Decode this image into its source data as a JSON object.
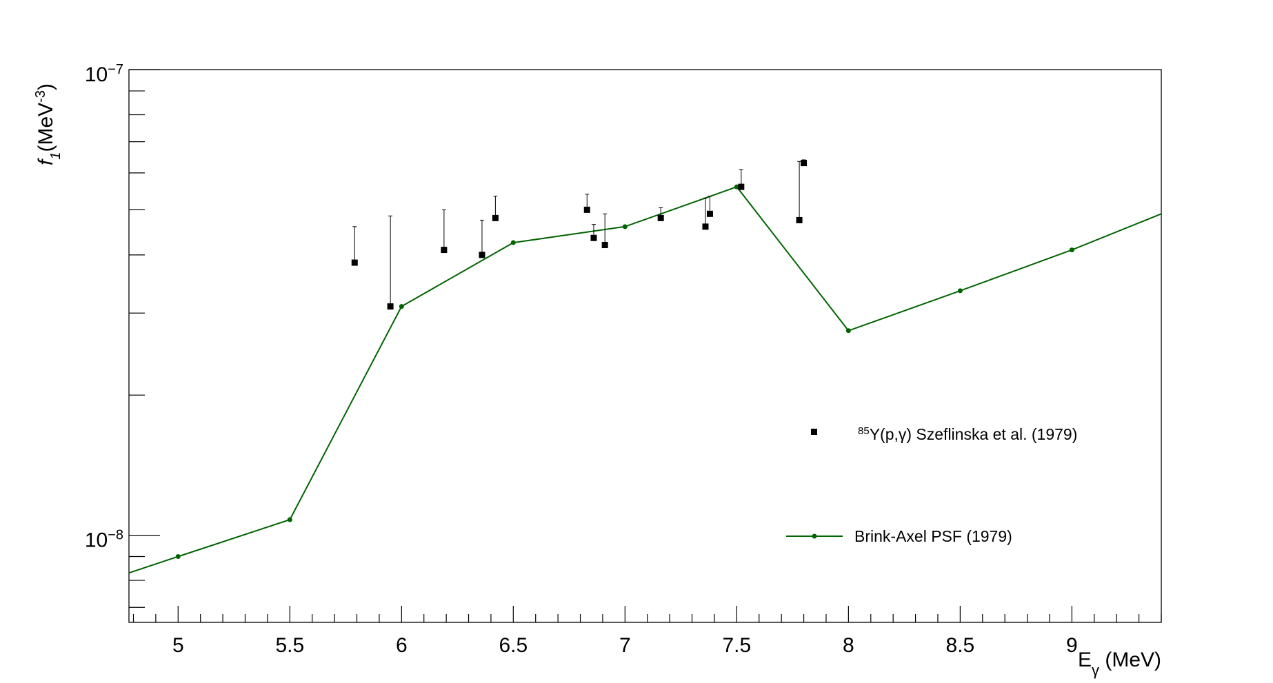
{
  "chart_data": {
    "type": "scatter",
    "xlabel": {
      "main": "E",
      "sub": "γ",
      "tail": " (MeV)"
    },
    "ylabel": {
      "main": "f",
      "sub": "1",
      "tail": "(MeV",
      "sup": "-3",
      "close": ")"
    },
    "xlim": [
      4.78,
      9.4
    ],
    "ylim": [
      6.5e-09,
      1e-07
    ],
    "y_scale": "log",
    "grid": false,
    "legend_position": "right-middle",
    "x_ticks": [
      {
        "value": 5,
        "label": "5"
      },
      {
        "value": 5.5,
        "label": "5.5"
      },
      {
        "value": 6,
        "label": "6"
      },
      {
        "value": 6.5,
        "label": "6.5"
      },
      {
        "value": 7,
        "label": "7"
      },
      {
        "value": 7.5,
        "label": "7.5"
      },
      {
        "value": 8,
        "label": "8"
      },
      {
        "value": 8.5,
        "label": "8.5"
      },
      {
        "value": 9,
        "label": "9"
      }
    ],
    "y_ticks": [
      {
        "value": 1e-07,
        "base": "10",
        "exp": "−7"
      },
      {
        "value": 1e-08,
        "base": "10",
        "exp": "−8"
      }
    ],
    "series": [
      {
        "name": {
          "sup": "85",
          "text": "Y(p,γ) Szeflinska et al. (1979)"
        },
        "kind": "points",
        "color": "#000000",
        "points": [
          {
            "x": 5.79,
            "y": 3.85e-08,
            "yhi": 4.6e-08
          },
          {
            "x": 5.95,
            "y": 3.1e-08,
            "yhi": 4.85e-08
          },
          {
            "x": 6.19,
            "y": 4.1e-08,
            "yhi": 5e-08
          },
          {
            "x": 6.36,
            "y": 4e-08,
            "yhi": 4.75e-08
          },
          {
            "x": 6.42,
            "y": 4.8e-08,
            "yhi": 5.35e-08
          },
          {
            "x": 6.83,
            "y": 5e-08,
            "yhi": 5.4e-08
          },
          {
            "x": 6.86,
            "y": 4.35e-08,
            "yhi": 4.65e-08
          },
          {
            "x": 6.91,
            "y": 4.2e-08,
            "yhi": 4.9e-08
          },
          {
            "x": 7.16,
            "y": 4.8e-08,
            "yhi": 5.05e-08
          },
          {
            "x": 7.36,
            "y": 4.6e-08,
            "yhi": 5.3e-08
          },
          {
            "x": 7.38,
            "y": 4.9e-08,
            "yhi": 5.35e-08
          },
          {
            "x": 7.52,
            "y": 5.6e-08,
            "yhi": 6.1e-08
          },
          {
            "x": 7.78,
            "y": 4.75e-08,
            "yhi": 6.35e-08
          },
          {
            "x": 7.8,
            "y": 6.3e-08,
            "yhi": 6.4e-08
          }
        ]
      },
      {
        "name": "Brink-Axel PSF (1979)",
        "kind": "line",
        "color": "#006400",
        "points": [
          {
            "x": 4.78,
            "y": 8.3e-09
          },
          {
            "x": 5.0,
            "y": 9e-09
          },
          {
            "x": 5.5,
            "y": 1.08e-08
          },
          {
            "x": 6.0,
            "y": 3.1e-08
          },
          {
            "x": 6.5,
            "y": 4.25e-08
          },
          {
            "x": 7.0,
            "y": 4.6e-08
          },
          {
            "x": 7.5,
            "y": 5.6e-08
          },
          {
            "x": 8.0,
            "y": 2.75e-08
          },
          {
            "x": 8.5,
            "y": 3.35e-08
          },
          {
            "x": 9.0,
            "y": 4.1e-08
          },
          {
            "x": 9.4,
            "y": 4.9e-08
          }
        ]
      }
    ]
  }
}
